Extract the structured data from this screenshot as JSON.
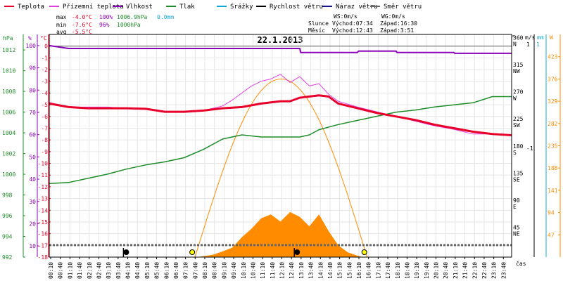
{
  "legend": [
    {
      "label": "Teplota",
      "color": "#e8002a"
    },
    {
      "label": "Přízemní teplota",
      "color": "#e040e0"
    },
    {
      "label": "Vlhkost",
      "color": "#8a00b8"
    },
    {
      "label": "Tlak",
      "color": "#1e8c28"
    },
    {
      "label": "Srážky",
      "color": "#14a8d8"
    },
    {
      "label": "Rychlost větru",
      "color": "#000000"
    },
    {
      "label": "Náraz větru",
      "color": "#12128c"
    },
    {
      "label": "Směr větru",
      "color": "#666666"
    }
  ],
  "stats": {
    "max_label": "max",
    "max_temp": "-4.0°C",
    "max_hum": "100%",
    "max_press": "1006.9hPa",
    "max_rain": "0.0mm",
    "min_label": "min",
    "min_temp": "-7.6°C",
    "min_hum": "96%",
    "min_press": "1000hPa",
    "avg_label": "avg",
    "avg_temp": "-5.5°C"
  },
  "wind_info": {
    "ws": "WS:0m/s",
    "wg": "WG:0m/s",
    "sun_label": "Slunce",
    "sun_rise": "Východ:07:34",
    "sun_set": "Západ:16:30",
    "moon_label": "Měsíc",
    "moon_rise": "Východ:12:43",
    "moon_set": "Západ:3:51"
  },
  "chart_data": {
    "type": "line",
    "title": "22.1.2013",
    "xlabel": "čas",
    "x_ticks": [
      "00:10",
      "00:40",
      "01:10",
      "01:40",
      "02:10",
      "02:40",
      "03:10",
      "03:40",
      "04:10",
      "04:40",
      "05:10",
      "05:40",
      "06:10",
      "06:40",
      "07:10",
      "07:40",
      "08:10",
      "08:40",
      "09:10",
      "09:40",
      "10:10",
      "10:40",
      "11:10",
      "11:40",
      "12:10",
      "12:40",
      "13:10",
      "13:40",
      "14:10",
      "14:40",
      "15:10",
      "15:40",
      "16:10",
      "16:40",
      "17:10",
      "17:40",
      "18:10",
      "18:40",
      "19:10",
      "19:40",
      "20:10",
      "20:40",
      "21:10",
      "21:40",
      "22:10",
      "22:40",
      "23:10",
      "23:40"
    ],
    "axes": {
      "pressure": {
        "unit": "hPa",
        "ticks": [
          992,
          994,
          996,
          998,
          1000,
          1002,
          1004,
          1006,
          1008,
          1010,
          1012
        ],
        "range": [
          992,
          1013.5
        ]
      },
      "humidity": {
        "unit": "%",
        "ticks": [
          10,
          20,
          30,
          40,
          50,
          60,
          70,
          80,
          90,
          100
        ],
        "range": [
          5,
          105
        ]
      },
      "temperature": {
        "unit": "°C",
        "ticks": [
          0,
          -1,
          -2,
          -3,
          -4,
          -5,
          -6,
          -7,
          -8,
          -9,
          -10,
          -11,
          -12,
          -13,
          -14,
          -15,
          -16,
          -17,
          -18
        ],
        "range": [
          -18,
          1
        ]
      },
      "wind_dir": {
        "unit": "°",
        "ticks": [
          {
            "v": 360,
            "l": "N"
          },
          {
            "v": 315,
            "l": "NW"
          },
          {
            "v": 270,
            "l": "W"
          },
          {
            "v": 225,
            "l": "SW"
          },
          {
            "v": 180,
            "l": "S"
          },
          {
            "v": 135,
            "l": "SE"
          },
          {
            "v": 90,
            "l": "E"
          },
          {
            "v": 45,
            "l": "NE"
          }
        ],
        "range": [
          0,
          370
        ]
      },
      "wind_speed": {
        "unit": "m/s",
        "ticks": [
          {
            "v": 1,
            "l": "1"
          },
          {
            "v": 0,
            "l": "-1"
          }
        ]
      },
      "rain": {
        "unit": "mm",
        "ticks": [
          {
            "v": 1,
            "l": "1"
          }
        ]
      },
      "radiation": {
        "unit": "W",
        "ticks": [
          423,
          376,
          329,
          282,
          235,
          188,
          141,
          94,
          47
        ],
        "range": [
          0,
          470
        ]
      }
    },
    "series": [
      {
        "name": "Teplota",
        "axis": "temperature",
        "color": "#e8002a",
        "values": [
          [
            0,
            -4.9
          ],
          [
            1,
            -5.2
          ],
          [
            2,
            -5.3
          ],
          [
            3,
            -5.3
          ],
          [
            4,
            -5.3
          ],
          [
            5,
            -5.35
          ],
          [
            6,
            -5.6
          ],
          [
            7,
            -5.6
          ],
          [
            8,
            -5.5
          ],
          [
            9,
            -5.3
          ],
          [
            10,
            -5.2
          ],
          [
            11,
            -4.9
          ],
          [
            11.5,
            -4.8
          ],
          [
            12,
            -4.7
          ],
          [
            12.5,
            -4.7
          ],
          [
            13,
            -4.4
          ],
          [
            13.5,
            -4.3
          ],
          [
            14,
            -4.2
          ],
          [
            14.5,
            -4.3
          ],
          [
            15,
            -4.9
          ],
          [
            16,
            -5.3
          ],
          [
            17,
            -5.7
          ],
          [
            18,
            -6.0
          ],
          [
            19,
            -6.3
          ],
          [
            20,
            -6.7
          ],
          [
            21,
            -7.0
          ],
          [
            22,
            -7.3
          ],
          [
            23,
            -7.5
          ],
          [
            24,
            -7.6
          ]
        ]
      },
      {
        "name": "Přízemní teplota",
        "axis": "temperature",
        "color": "#e040e0",
        "values": [
          [
            0,
            -4.8
          ],
          [
            1,
            -5.2
          ],
          [
            2,
            -5.2
          ],
          [
            3,
            -5.2
          ],
          [
            4,
            -5.3
          ],
          [
            5,
            -5.4
          ],
          [
            6,
            -5.6
          ],
          [
            7,
            -5.6
          ],
          [
            8,
            -5.5
          ],
          [
            9,
            -5.1
          ],
          [
            9.5,
            -4.6
          ],
          [
            10,
            -4.0
          ],
          [
            10.5,
            -3.4
          ],
          [
            11,
            -3.0
          ],
          [
            11.5,
            -2.8
          ],
          [
            12,
            -2.4
          ],
          [
            12.5,
            -3.1
          ],
          [
            13,
            -2.6
          ],
          [
            13.5,
            -3.4
          ],
          [
            14,
            -3.2
          ],
          [
            14.5,
            -4.1
          ],
          [
            15,
            -4.7
          ],
          [
            16,
            -5.2
          ],
          [
            17,
            -5.6
          ],
          [
            18,
            -6.0
          ],
          [
            19,
            -6.4
          ],
          [
            20,
            -6.8
          ],
          [
            21,
            -7.1
          ],
          [
            22,
            -7.5
          ],
          [
            23,
            -7.5
          ],
          [
            24,
            -7.6
          ]
        ]
      },
      {
        "name": "Vlhkost",
        "axis": "humidity",
        "color": "#8a00b8",
        "values": [
          [
            0,
            100
          ],
          [
            1,
            98.7
          ],
          [
            13,
            98.7
          ],
          [
            13.05,
            96.9
          ],
          [
            16,
            96.9
          ],
          [
            16.05,
            97.5
          ],
          [
            18,
            97.5
          ],
          [
            18.05,
            96.9
          ],
          [
            21,
            96.9
          ],
          [
            21.05,
            96.5
          ],
          [
            24,
            96.5
          ]
        ]
      },
      {
        "name": "Tlak",
        "axis": "pressure",
        "color": "#1e8c28",
        "values": [
          [
            0,
            999.1
          ],
          [
            1,
            999.2
          ],
          [
            2,
            999.6
          ],
          [
            3,
            1000.0
          ],
          [
            4,
            1000.5
          ],
          [
            5,
            1000.9
          ],
          [
            6,
            1001.2
          ],
          [
            7,
            1001.6
          ],
          [
            8,
            1002.4
          ],
          [
            9,
            1003.4
          ],
          [
            10,
            1003.8
          ],
          [
            11,
            1003.6
          ],
          [
            12,
            1003.6
          ],
          [
            13,
            1003.6
          ],
          [
            13.5,
            1003.8
          ],
          [
            14,
            1004.3
          ],
          [
            15,
            1004.8
          ],
          [
            16,
            1005.2
          ],
          [
            17,
            1005.6
          ],
          [
            18,
            1006.0
          ],
          [
            19,
            1006.2
          ],
          [
            20,
            1006.5
          ],
          [
            21,
            1006.7
          ],
          [
            22,
            1006.9
          ],
          [
            23,
            1007.5
          ],
          [
            24,
            1007.5
          ]
        ]
      },
      {
        "name": "Směr větru",
        "axis": "wind_dir",
        "color": "#666666",
        "values": [
          [
            0,
            20
          ],
          [
            24,
            20
          ]
        ]
      }
    ],
    "radiation": {
      "axis": "radiation",
      "color": "#ff8c00",
      "values": [
        [
          7.7,
          0
        ],
        [
          8.5,
          5
        ],
        [
          9,
          12
        ],
        [
          9.5,
          20
        ],
        [
          10,
          42
        ],
        [
          10.5,
          60
        ],
        [
          11,
          82
        ],
        [
          11.5,
          90
        ],
        [
          12,
          75
        ],
        [
          12.5,
          95
        ],
        [
          13,
          85
        ],
        [
          13.5,
          65
        ],
        [
          14,
          90
        ],
        [
          14.5,
          55
        ],
        [
          15,
          25
        ],
        [
          15.5,
          10
        ],
        [
          16,
          3
        ],
        [
          16.3,
          0
        ]
      ]
    },
    "sun_elevation": {
      "axis": "radiation",
      "color": "#ff8c00",
      "sunrise": 7.5667,
      "sunset": 16.5,
      "peak": 376
    }
  }
}
